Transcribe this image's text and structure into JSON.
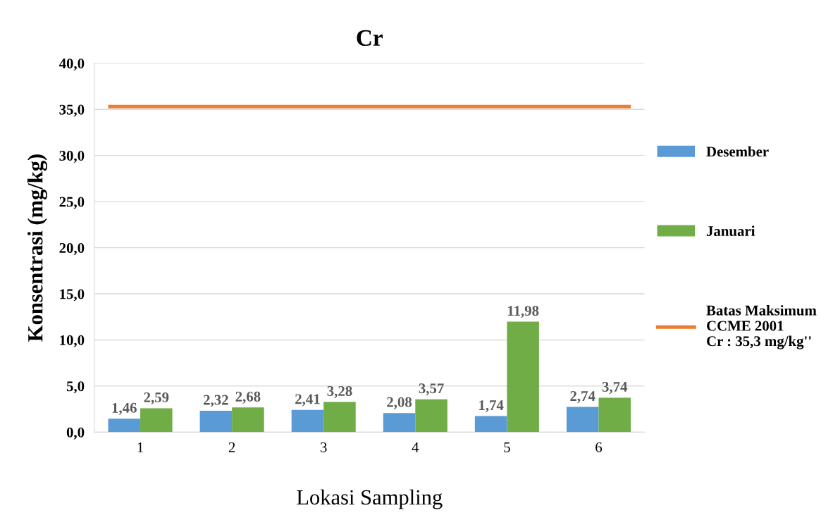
{
  "chart_data": {
    "type": "bar",
    "title": "Cr",
    "xlabel": "Lokasi Sampling",
    "ylabel": "Konsentrasi (mg/kg)",
    "categories": [
      "1",
      "2",
      "3",
      "4",
      "5",
      "6"
    ],
    "series": [
      {
        "name": "Desember",
        "color": "#5b9bd5",
        "values": [
          1.46,
          2.32,
          2.41,
          2.08,
          1.74,
          2.74
        ],
        "value_labels": [
          "1,46",
          "2,32",
          "2,41",
          "2,08",
          "1,74",
          "2,74"
        ]
      },
      {
        "name": "Januari",
        "color": "#70ad47",
        "values": [
          2.59,
          2.68,
          3.28,
          3.57,
          11.98,
          3.74
        ],
        "value_labels": [
          "2,59",
          "2,68",
          "3,28",
          "3,57",
          "11,98",
          "3,74"
        ]
      }
    ],
    "ref_lines": [
      {
        "axis": "y",
        "value": 35.3,
        "label": "Batas Maksimum\nCCME 2001\nCr : 35,3 mg/kg''",
        "color": "#ed7d31"
      }
    ],
    "ylim": [
      0,
      40
    ],
    "yticks": [
      {
        "value": 0,
        "label": "0,0"
      },
      {
        "value": 5,
        "label": "5,0"
      },
      {
        "value": 10,
        "label": "10,0"
      },
      {
        "value": 15,
        "label": "15,0"
      },
      {
        "value": 20,
        "label": "20,0"
      },
      {
        "value": 25,
        "label": "25,0"
      },
      {
        "value": 30,
        "label": "30,0"
      },
      {
        "value": 35,
        "label": "35,0"
      },
      {
        "value": 40,
        "label": "40,0"
      }
    ],
    "grid": "y",
    "legend": "right"
  }
}
